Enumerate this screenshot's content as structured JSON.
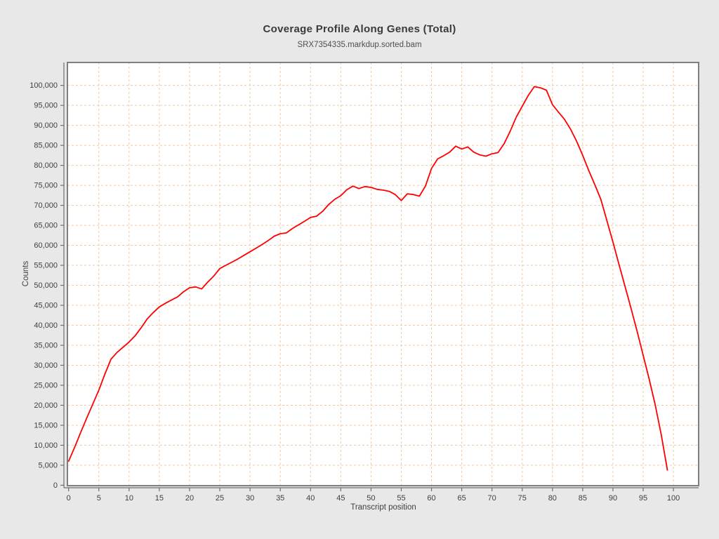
{
  "title": "Coverage Profile Along Genes (Total)",
  "subtitle": "SRX7354335.markdup.sorted.bam",
  "chart_data": {
    "type": "line",
    "title": "Coverage Profile Along Genes (Total)",
    "subtitle": "SRX7354335.markdup.sorted.bam",
    "xlabel": "Transcript position",
    "ylabel": "Counts",
    "xlim": [
      0,
      104.3
    ],
    "ylim": [
      0,
      105800
    ],
    "grid": true,
    "grid_style": "dashed",
    "legend_position": "none",
    "x_ticks": [
      0,
      5,
      10,
      15,
      20,
      25,
      30,
      35,
      40,
      45,
      50,
      55,
      60,
      65,
      70,
      75,
      80,
      85,
      90,
      95,
      100
    ],
    "y_ticks": [
      0,
      5000,
      10000,
      15000,
      20000,
      25000,
      30000,
      35000,
      40000,
      45000,
      50000,
      55000,
      60000,
      65000,
      70000,
      75000,
      80000,
      85000,
      90000,
      95000,
      100000
    ],
    "series": [
      {
        "name": "SRX7354335.markdup.sorted.bam",
        "color": "#fe0000",
        "x_start": 0,
        "x_step": 1,
        "values": [
          6000,
          9500,
          13200,
          16800,
          20300,
          23800,
          27800,
          31500,
          33200,
          34500,
          35800,
          37400,
          39400,
          41600,
          43200,
          44600,
          45500,
          46300,
          47100,
          48400,
          49400,
          49600,
          49100,
          50800,
          52300,
          54200,
          55000,
          55800,
          56600,
          57500,
          58400,
          59300,
          60200,
          61200,
          62300,
          62900,
          63100,
          64200,
          65100,
          66000,
          67000,
          67300,
          68500,
          70200,
          71500,
          72400,
          73900,
          74800,
          74200,
          74700,
          74500,
          74000,
          73800,
          73500,
          72700,
          71200,
          72900,
          72700,
          72300,
          74800,
          79200,
          81600,
          82400,
          83300,
          84800,
          84100,
          84600,
          83300,
          82600,
          82300,
          82900,
          83200,
          85400,
          88500,
          92000,
          94800,
          97500,
          99700,
          99400,
          98800,
          95200,
          93300,
          91500,
          89000,
          86000,
          82500,
          78700,
          75200,
          71500,
          66200,
          60800,
          55200,
          49700,
          44200,
          38500,
          32500,
          26500,
          20000,
          12500,
          3800
        ]
      }
    ]
  },
  "colors": {
    "page_background": "#e8e8e8",
    "plot_background": "#ffffff",
    "plot_border": "#7f7f7f",
    "gridline": "#f2c8a0",
    "axis": "#6e6e6e",
    "tick_text": "#3f3f3f",
    "series_line": "#fe0000"
  }
}
